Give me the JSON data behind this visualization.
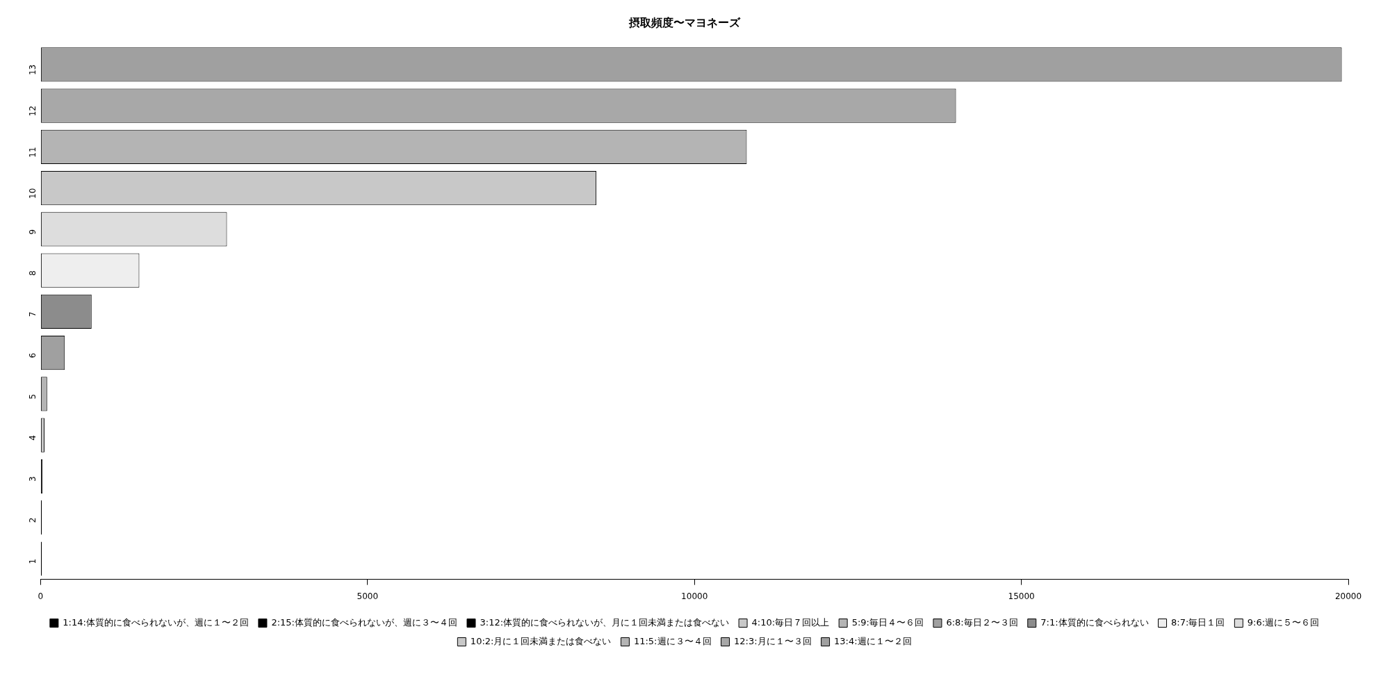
{
  "chart_data": {
    "type": "bar",
    "title": "摂取頻度〜マヨネーズ",
    "orientation": "horizontal",
    "stacked": true,
    "categories": [
      "13",
      "12",
      "11",
      "10",
      "9",
      "8",
      "7",
      "6",
      "5",
      "4",
      "3",
      "2",
      "1"
    ],
    "xlim": [
      0,
      20000
    ],
    "xticks": [
      0,
      5000,
      10000,
      15000,
      20000
    ],
    "grid": false,
    "legend": "bottom",
    "series": [
      {
        "name": "1:14:体質的に食べられないが、週に１〜２回",
        "color": "#000000",
        "values": [
          null,
          null,
          null,
          null,
          null,
          null,
          null,
          null,
          null,
          null,
          null,
          null,
          20
        ]
      },
      {
        "name": "2:15:体質的に食べられないが、週に３〜４回",
        "color": "#000000",
        "values": [
          null,
          null,
          null,
          null,
          null,
          null,
          null,
          null,
          null,
          null,
          null,
          20,
          null
        ]
      },
      {
        "name": "3:12:体質的に食べられないが、月に１回未満または食べない",
        "color": "#000000",
        "values": [
          null,
          null,
          null,
          null,
          null,
          null,
          null,
          null,
          null,
          null,
          30,
          null,
          null
        ]
      },
      {
        "name": "4:10:毎日７回以上",
        "color": "#c8c8c8",
        "values": [
          null,
          null,
          null,
          null,
          null,
          null,
          null,
          null,
          null,
          60,
          null,
          null,
          null
        ]
      },
      {
        "name": "5:9:毎日４〜６回",
        "color": "#b4b4b4",
        "values": [
          null,
          null,
          null,
          null,
          null,
          null,
          null,
          null,
          100,
          null,
          null,
          null,
          null
        ]
      },
      {
        "name": "6:8:毎日２〜３回",
        "color": "#a0a0a0",
        "values": [
          null,
          null,
          null,
          null,
          null,
          null,
          null,
          370,
          null,
          null,
          null,
          null,
          null
        ]
      },
      {
        "name": "7:1:体質的に食べられない",
        "color": "#8c8c8c",
        "values": [
          null,
          null,
          null,
          null,
          null,
          null,
          780,
          null,
          null,
          null,
          null,
          null,
          null
        ]
      },
      {
        "name": "8:7:毎日１回",
        "color": "#eeeeee",
        "values": [
          null,
          null,
          null,
          null,
          null,
          1510,
          null,
          null,
          null,
          null,
          null,
          null,
          null
        ]
      },
      {
        "name": "9:6:週に５〜６回",
        "color": "#dddddd",
        "values": [
          null,
          null,
          null,
          null,
          2850,
          null,
          null,
          null,
          null,
          null,
          null,
          null,
          null
        ]
      },
      {
        "name": "10:2:月に１回未満または食べない",
        "color": "#c8c8c8",
        "values": [
          null,
          null,
          null,
          8500,
          null,
          null,
          null,
          null,
          null,
          null,
          null,
          null,
          null
        ]
      },
      {
        "name": "11:5:週に３〜４回",
        "color": "#b4b4b4",
        "values": [
          null,
          null,
          10800,
          null,
          null,
          null,
          null,
          null,
          null,
          null,
          null,
          null,
          null
        ]
      },
      {
        "name": "12:3:月に１〜３回",
        "color": "#a8a8a8",
        "values": [
          null,
          14000,
          null,
          null,
          null,
          null,
          null,
          null,
          null,
          null,
          null,
          null,
          null
        ]
      },
      {
        "name": "13:4:週に１〜２回",
        "color": "#a0a0a0",
        "values": [
          19900,
          null,
          null,
          null,
          null,
          null,
          null,
          null,
          null,
          null,
          null,
          null,
          null
        ]
      }
    ]
  }
}
